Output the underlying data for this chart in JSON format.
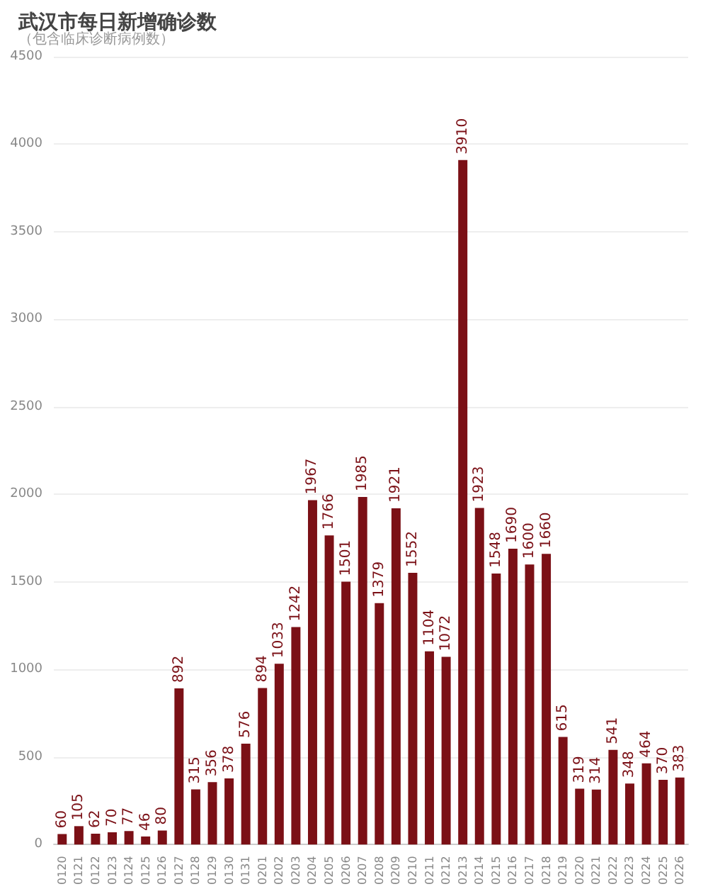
{
  "chart_data": {
    "type": "bar",
    "title": "武汉市每日新增确诊数",
    "subtitle": "（包含临床诊断病例数）",
    "categories": [
      "0120",
      "0121",
      "0122",
      "0123",
      "0124",
      "0125",
      "0126",
      "0127",
      "0128",
      "0129",
      "0130",
      "0131",
      "0201",
      "0202",
      "0203",
      "0204",
      "0205",
      "0206",
      "0207",
      "0208",
      "0209",
      "0210",
      "0211",
      "0212",
      "0213",
      "0214",
      "0215",
      "0216",
      "0217",
      "0218",
      "0219",
      "0220",
      "0221",
      "0222",
      "0223",
      "0224",
      "0225",
      "0226"
    ],
    "values": [
      60,
      105,
      62,
      70,
      77,
      46,
      80,
      892,
      315,
      356,
      378,
      576,
      894,
      1033,
      1242,
      1967,
      1766,
      1501,
      1985,
      1379,
      1921,
      1552,
      1104,
      1072,
      3910,
      1923,
      1548,
      1690,
      1600,
      1660,
      615,
      319,
      314,
      541,
      348,
      464,
      370,
      383
    ],
    "color": "#7b1016",
    "ylim": [
      0,
      4500
    ],
    "yticks": [
      0,
      500,
      1000,
      1500,
      2000,
      2500,
      3000,
      3500,
      4000,
      4500
    ],
    "grid": "y",
    "data_labels": true
  }
}
